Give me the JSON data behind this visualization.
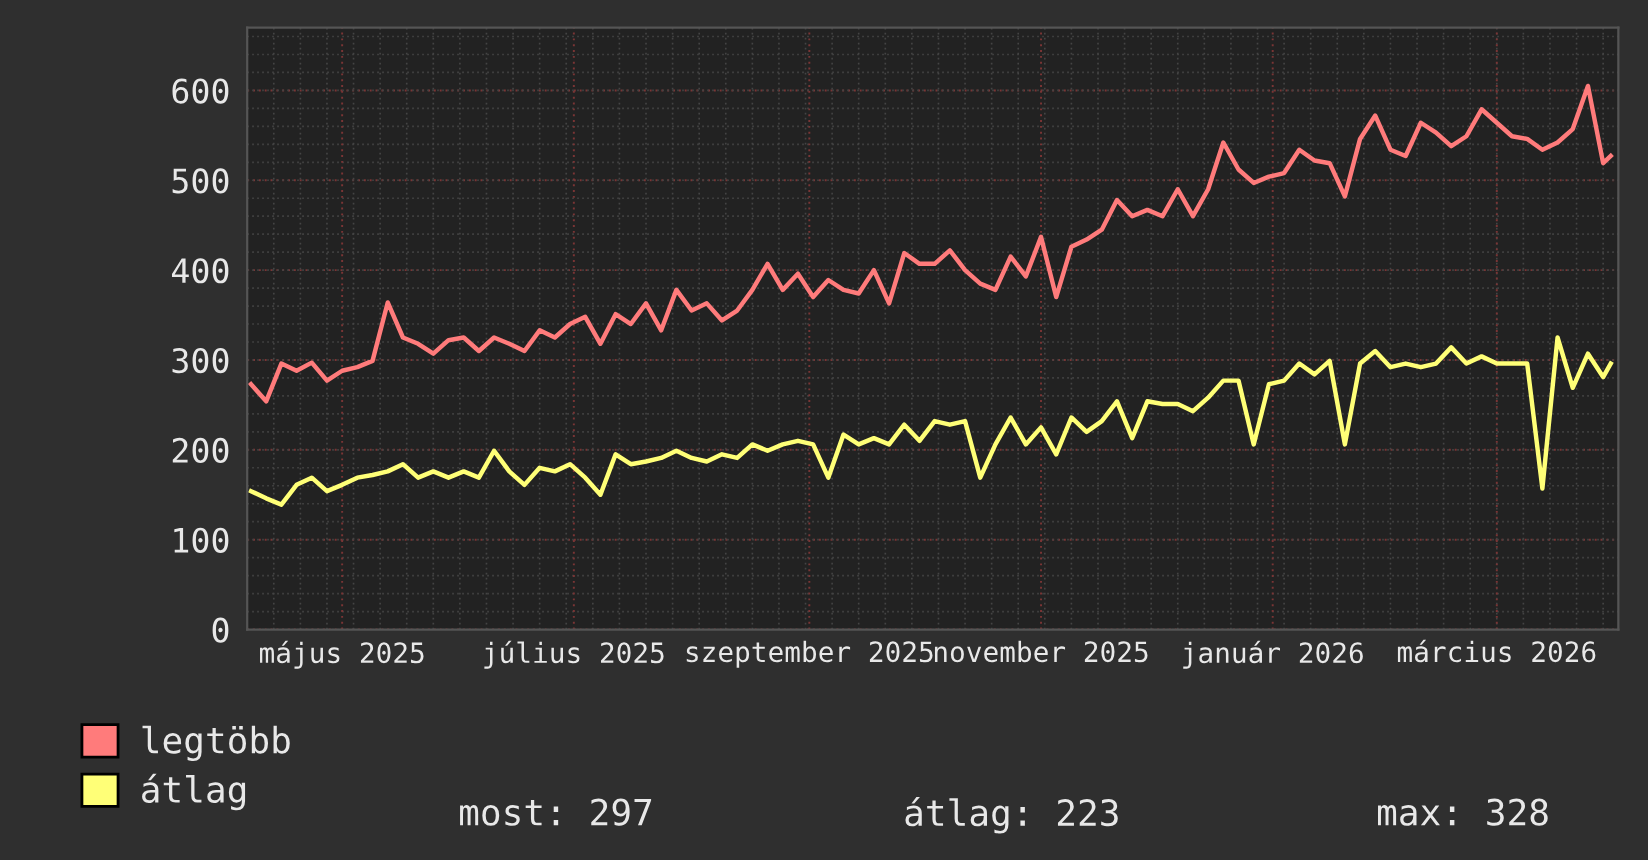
{
  "chart_data": {
    "type": "line",
    "x": [
      "2025-04-07",
      "2025-04-11",
      "2025-04-15",
      "2025-04-19",
      "2025-04-23",
      "2025-04-27",
      "2025-05-01",
      "2025-05-05",
      "2025-05-09",
      "2025-05-13",
      "2025-05-17",
      "2025-05-21",
      "2025-05-25",
      "2025-05-29",
      "2025-06-02",
      "2025-06-06",
      "2025-06-10",
      "2025-06-14",
      "2025-06-18",
      "2025-06-22",
      "2025-06-26",
      "2025-06-30",
      "2025-07-04",
      "2025-07-08",
      "2025-07-12",
      "2025-07-16",
      "2025-07-20",
      "2025-07-24",
      "2025-07-28",
      "2025-08-01",
      "2025-08-05",
      "2025-08-09",
      "2025-08-13",
      "2025-08-17",
      "2025-08-21",
      "2025-08-25",
      "2025-08-29",
      "2025-09-02",
      "2025-09-06",
      "2025-09-10",
      "2025-09-14",
      "2025-09-18",
      "2025-09-22",
      "2025-09-26",
      "2025-09-30",
      "2025-10-04",
      "2025-10-08",
      "2025-10-12",
      "2025-10-16",
      "2025-10-20",
      "2025-10-24",
      "2025-10-28",
      "2025-11-01",
      "2025-11-05",
      "2025-11-09",
      "2025-11-13",
      "2025-11-17",
      "2025-11-21",
      "2025-11-25",
      "2025-11-29",
      "2025-12-03",
      "2025-12-07",
      "2025-12-11",
      "2025-12-15",
      "2025-12-19",
      "2025-12-23",
      "2025-12-27",
      "2025-12-31",
      "2026-01-04",
      "2026-01-08",
      "2026-01-12",
      "2026-01-16",
      "2026-01-20",
      "2026-01-24",
      "2026-01-28",
      "2026-02-01",
      "2026-02-05",
      "2026-02-09",
      "2026-02-13",
      "2026-02-17",
      "2026-02-21",
      "2026-02-25",
      "2026-03-01",
      "2026-03-05",
      "2026-03-09",
      "2026-03-13",
      "2026-03-17",
      "2026-03-21",
      "2026-03-25",
      "2026-03-29",
      "2026-03-31"
    ],
    "series": [
      {
        "name": "legtöbb",
        "color": "#ff7b7b",
        "values": [
          273,
          254,
          296,
          288,
          297,
          277,
          288,
          292,
          299,
          364,
          325,
          318,
          307,
          322,
          325,
          310,
          325,
          318,
          310,
          333,
          325,
          340,
          348,
          318,
          351,
          340,
          363,
          333,
          378,
          355,
          363,
          344,
          355,
          378,
          407,
          378,
          396,
          370,
          389,
          378,
          374,
          400,
          363,
          419,
          407,
          407,
          422,
          400,
          385,
          378,
          415,
          393,
          437,
          370,
          426,
          434,
          445,
          478,
          460,
          467,
          460,
          490,
          460,
          490,
          542,
          512,
          497,
          504,
          508,
          534,
          522,
          519,
          482,
          546,
          572,
          534,
          527,
          564,
          553,
          538,
          549,
          579,
          564,
          549,
          546,
          534,
          542,
          557,
          605,
          519,
          527
        ]
      },
      {
        "name": "átlag",
        "color": "#ffff77",
        "values": [
          154,
          146,
          139,
          161,
          169,
          154,
          161,
          169,
          172,
          176,
          184,
          169,
          176,
          169,
          176,
          169,
          199,
          176,
          161,
          180,
          176,
          184,
          169,
          150,
          195,
          184,
          187,
          191,
          199,
          191,
          187,
          195,
          191,
          206,
          199,
          206,
          210,
          206,
          169,
          217,
          206,
          213,
          206,
          228,
          210,
          232,
          228,
          232,
          169,
          206,
          236,
          206,
          225,
          195,
          236,
          220,
          232,
          254,
          213,
          254,
          251,
          251,
          243,
          258,
          277,
          277,
          206,
          273,
          277,
          296,
          284,
          299,
          206,
          296,
          310,
          292,
          296,
          292,
          296,
          314,
          296,
          304,
          296,
          296,
          296,
          157,
          325,
          269,
          307,
          281,
          296
        ]
      }
    ],
    "xlim": [
      "2025-04-06",
      "2026-04-02"
    ],
    "xticks": [
      {
        "value": "2025-05-01",
        "label": "május 2025"
      },
      {
        "value": "2025-07-01",
        "label": "július 2025"
      },
      {
        "value": "2025-09-01",
        "label": "szeptember 2025"
      },
      {
        "value": "2025-11-01",
        "label": "november 2025"
      },
      {
        "value": "2026-01-01",
        "label": "január 2026"
      },
      {
        "value": "2026-03-01",
        "label": "március 2026"
      }
    ],
    "ylim": [
      0,
      670
    ],
    "yticks": [
      0,
      100,
      200,
      300,
      400,
      500,
      600
    ],
    "grid": true,
    "legend": "bottom left",
    "line_style": "solid",
    "annotations": [
      "most: 297",
      "átlag: 223",
      "max: 328"
    ]
  }
}
